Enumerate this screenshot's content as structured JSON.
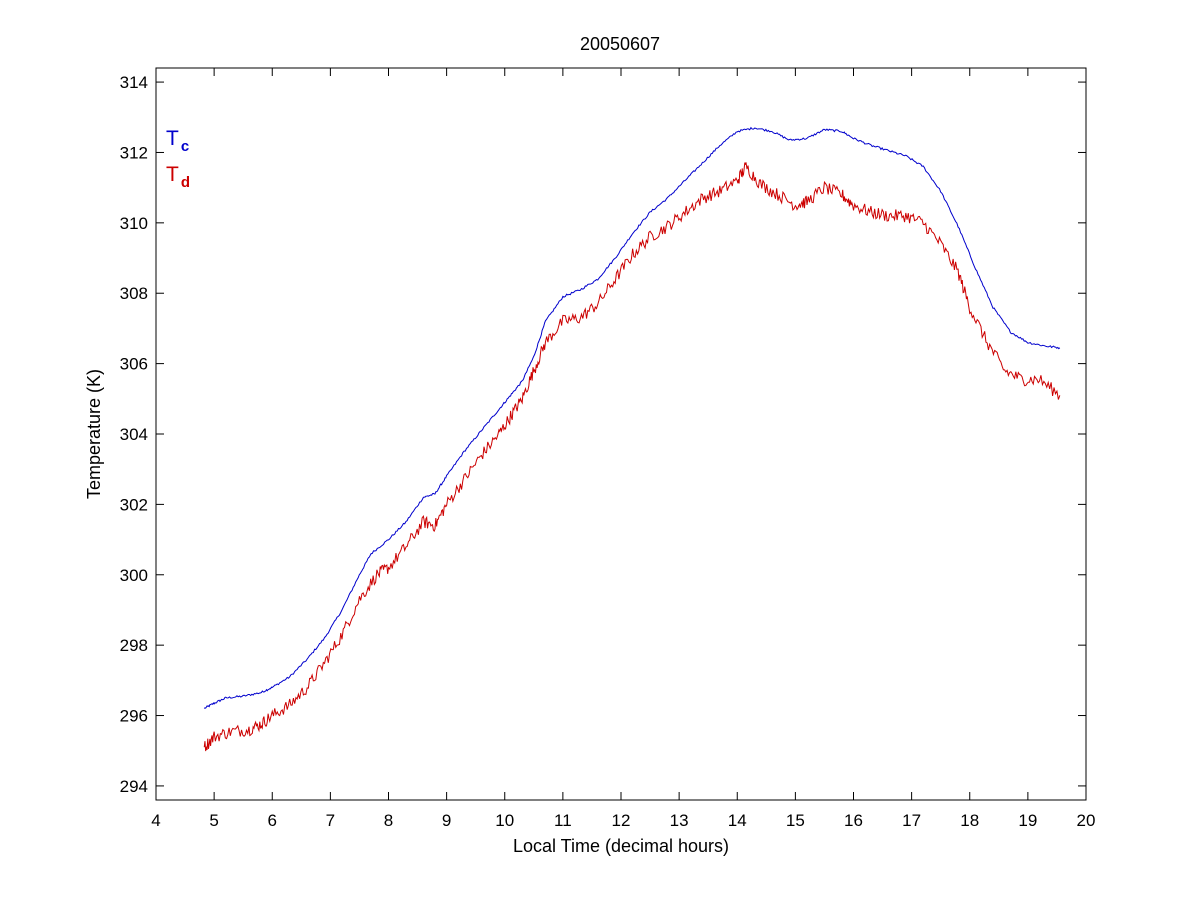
{
  "chart_data": {
    "type": "line",
    "title": "20050607",
    "xlabel": "Local Time (decimal hours)",
    "ylabel": "Temperature (K)",
    "xlim": [
      4,
      20
    ],
    "ylim": [
      293.6,
      314.4
    ],
    "xticks": [
      4,
      5,
      6,
      7,
      8,
      9,
      10,
      11,
      12,
      13,
      14,
      15,
      16,
      17,
      18,
      19,
      20
    ],
    "yticks": [
      294,
      296,
      298,
      300,
      302,
      304,
      306,
      308,
      310,
      312,
      314
    ],
    "grid": false,
    "legend_position": "top-left",
    "series": [
      {
        "name": "T",
        "subscript": "c",
        "color": "#0000cc",
        "noise": 0.03,
        "points": [
          [
            4.83,
            296.2
          ],
          [
            5.0,
            296.35
          ],
          [
            5.2,
            296.5
          ],
          [
            5.5,
            296.55
          ],
          [
            5.8,
            296.65
          ],
          [
            6.0,
            296.8
          ],
          [
            6.3,
            297.1
          ],
          [
            6.6,
            297.6
          ],
          [
            6.9,
            298.2
          ],
          [
            7.2,
            299.0
          ],
          [
            7.5,
            300.0
          ],
          [
            7.7,
            300.6
          ],
          [
            8.0,
            301.0
          ],
          [
            8.3,
            301.5
          ],
          [
            8.6,
            302.2
          ],
          [
            8.8,
            302.3
          ],
          [
            9.0,
            302.8
          ],
          [
            9.3,
            303.5
          ],
          [
            9.6,
            304.1
          ],
          [
            9.9,
            304.7
          ],
          [
            10.1,
            305.1
          ],
          [
            10.3,
            305.5
          ],
          [
            10.5,
            306.2
          ],
          [
            10.7,
            307.2
          ],
          [
            11.0,
            307.9
          ],
          [
            11.3,
            308.1
          ],
          [
            11.6,
            308.4
          ],
          [
            11.9,
            309.0
          ],
          [
            12.2,
            309.7
          ],
          [
            12.5,
            310.3
          ],
          [
            12.8,
            310.7
          ],
          [
            13.1,
            311.2
          ],
          [
            13.4,
            311.7
          ],
          [
            13.7,
            312.2
          ],
          [
            14.0,
            312.6
          ],
          [
            14.3,
            312.7
          ],
          [
            14.6,
            312.6
          ],
          [
            14.9,
            312.35
          ],
          [
            15.2,
            312.4
          ],
          [
            15.5,
            312.65
          ],
          [
            15.8,
            312.6
          ],
          [
            16.0,
            312.4
          ],
          [
            16.3,
            312.2
          ],
          [
            16.6,
            312.05
          ],
          [
            16.9,
            311.9
          ],
          [
            17.2,
            311.6
          ],
          [
            17.5,
            310.9
          ],
          [
            17.8,
            309.9
          ],
          [
            18.1,
            308.7
          ],
          [
            18.4,
            307.6
          ],
          [
            18.7,
            306.9
          ],
          [
            19.0,
            306.6
          ],
          [
            19.3,
            306.5
          ],
          [
            19.55,
            306.45
          ]
        ]
      },
      {
        "name": "T",
        "subscript": "d",
        "color": "#cc0000",
        "noise": 0.18,
        "points": [
          [
            4.83,
            295.1
          ],
          [
            5.0,
            295.4
          ],
          [
            5.3,
            295.55
          ],
          [
            5.6,
            295.6
          ],
          [
            5.8,
            295.75
          ],
          [
            6.0,
            296.0
          ],
          [
            6.3,
            296.3
          ],
          [
            6.6,
            296.8
          ],
          [
            6.9,
            297.5
          ],
          [
            7.2,
            298.3
          ],
          [
            7.5,
            299.3
          ],
          [
            7.8,
            300.0
          ],
          [
            8.0,
            300.2
          ],
          [
            8.3,
            300.8
          ],
          [
            8.6,
            301.5
          ],
          [
            8.8,
            301.4
          ],
          [
            9.0,
            302.0
          ],
          [
            9.3,
            302.7
          ],
          [
            9.6,
            303.4
          ],
          [
            9.9,
            304.0
          ],
          [
            10.1,
            304.5
          ],
          [
            10.3,
            305.0
          ],
          [
            10.5,
            305.8
          ],
          [
            10.7,
            306.6
          ],
          [
            11.0,
            307.2
          ],
          [
            11.3,
            307.3
          ],
          [
            11.6,
            307.7
          ],
          [
            11.9,
            308.4
          ],
          [
            12.2,
            309.1
          ],
          [
            12.5,
            309.6
          ],
          [
            12.8,
            309.9
          ],
          [
            13.1,
            310.3
          ],
          [
            13.4,
            310.7
          ],
          [
            13.7,
            310.9
          ],
          [
            14.0,
            311.2
          ],
          [
            14.15,
            311.6
          ],
          [
            14.4,
            311.1
          ],
          [
            14.7,
            310.8
          ],
          [
            15.0,
            310.5
          ],
          [
            15.2,
            310.6
          ],
          [
            15.5,
            311.0
          ],
          [
            15.8,
            310.8
          ],
          [
            16.0,
            310.5
          ],
          [
            16.3,
            310.3
          ],
          [
            16.6,
            310.2
          ],
          [
            16.9,
            310.2
          ],
          [
            17.2,
            310.0
          ],
          [
            17.5,
            309.4
          ],
          [
            17.8,
            308.6
          ],
          [
            18.0,
            307.6
          ],
          [
            18.3,
            306.6
          ],
          [
            18.6,
            305.8
          ],
          [
            18.9,
            305.55
          ],
          [
            19.2,
            305.55
          ],
          [
            19.55,
            305.1
          ]
        ]
      }
    ]
  }
}
